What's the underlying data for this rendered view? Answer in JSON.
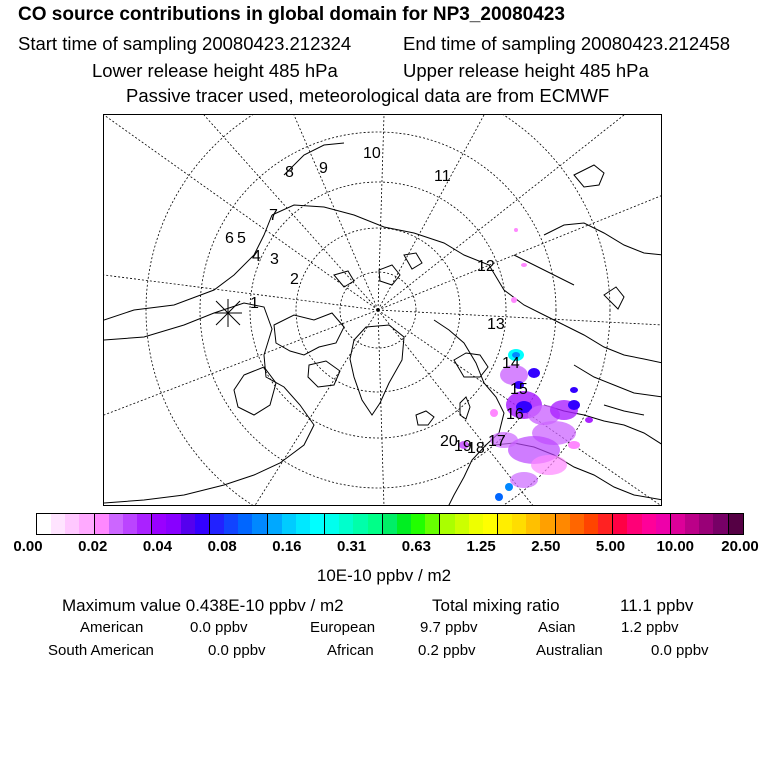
{
  "header": {
    "title": "CO  source contributions in global domain for NP3_20080423",
    "start_time": "Start time of sampling 20080423.212324",
    "end_time": "End time of sampling 20080423.212458",
    "lower_height": "Lower release height  485 hPa",
    "upper_height": "Upper release height  485 hPa",
    "tracer_note": "Passive tracer used, meteorological data are from ECMWF"
  },
  "map": {
    "projection": "north polar stereographic",
    "coastline_color": "#000000",
    "gridline_style": "dotted",
    "trajectory_labels": [
      "1",
      "2",
      "3",
      "4",
      "5",
      "6",
      "7",
      "8",
      "9",
      "10",
      "11",
      "12",
      "13",
      "14",
      "15",
      "16",
      "17",
      "18",
      "19",
      "20"
    ],
    "release_marker": "x-marker"
  },
  "colorbar": {
    "tick_labels": [
      "0.00",
      "0.02",
      "0.04",
      "0.08",
      "0.16",
      "0.31",
      "0.63",
      "1.25",
      "2.50",
      "5.00",
      "10.00",
      "20.00"
    ],
    "colors": [
      "#ffffff",
      "#ffe4ff",
      "#ffc8ff",
      "#ffaaff",
      "#ff88ff",
      "#cc66ff",
      "#bb44ff",
      "#aa22ff",
      "#9900ff",
      "#8800ff",
      "#5500ee",
      "#3300ff",
      "#2222ff",
      "#1144ff",
      "#0066ff",
      "#0088ff",
      "#00a8ff",
      "#00ccff",
      "#00e8ff",
      "#00ffff",
      "#00ffee",
      "#00ffcc",
      "#00ffaa",
      "#00ff88",
      "#00ee66",
      "#00ee22",
      "#22ff00",
      "#66ff00",
      "#aaff00",
      "#ccff00",
      "#eeff00",
      "#ffff00",
      "#ffee00",
      "#ffdd00",
      "#ffc000",
      "#ffa000",
      "#ff8800",
      "#ff6600",
      "#ff4400",
      "#ff2222",
      "#ff0044",
      "#ff0077",
      "#ff0099",
      "#ee00aa",
      "#dd0099",
      "#bb0088",
      "#990077",
      "#770066",
      "#550044"
    ],
    "unit_label": "10E-10 ppbv / m2"
  },
  "stats": {
    "max_label": "Maximum value  0.438E-10 ppbv / m2",
    "total_label": "Total mixing ratio",
    "total_value": "11.1 ppbv",
    "regions": [
      {
        "name": "American",
        "value": "0.0 ppbv"
      },
      {
        "name": "European",
        "value": "9.7 ppbv"
      },
      {
        "name": "Asian",
        "value": "1.2 ppbv"
      },
      {
        "name": "South American",
        "value": "0.0 ppbv"
      },
      {
        "name": "African",
        "value": "0.2 ppbv"
      },
      {
        "name": "Australian",
        "value": "0.0 ppbv"
      }
    ]
  }
}
